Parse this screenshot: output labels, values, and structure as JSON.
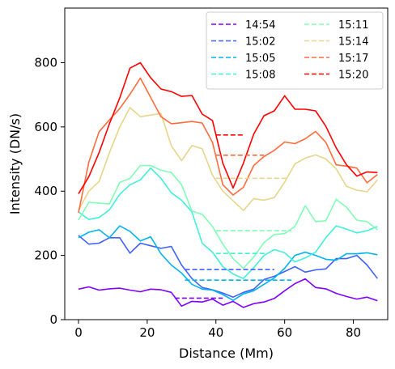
{
  "chart_data": {
    "type": "line",
    "xlabel": "Distance (Mm)",
    "ylabel": "Intensity (DN/s)",
    "xlim": [
      -4,
      90
    ],
    "ylim": [
      0,
      970
    ],
    "xticks": [
      0,
      20,
      40,
      60,
      80
    ],
    "yticks": [
      0,
      200,
      400,
      600,
      800
    ],
    "grid": false,
    "legend": {
      "placement": "top-right",
      "columns": 2
    },
    "x": [
      0,
      3,
      6,
      9,
      12,
      15,
      18,
      21,
      24,
      27,
      30,
      33,
      36,
      39,
      42,
      45,
      48,
      51,
      54,
      57,
      60,
      63,
      66,
      69,
      72,
      75,
      78,
      81,
      84,
      87
    ],
    "series": [
      {
        "name": "14:54",
        "color": "#7f00ff",
        "values": [
          95,
          102,
          92,
          96,
          98,
          92,
          87,
          95,
          93,
          85,
          42,
          57,
          55,
          64,
          45,
          57,
          38,
          50,
          55,
          66,
          90,
          112,
          127,
          100,
          96,
          82,
          72,
          64,
          70,
          59
        ],
        "mean_level": 67,
        "mean_x": [
          28,
          42
        ]
      },
      {
        "name": "15:02",
        "color": "#3f61fa",
        "values": [
          262,
          235,
          238,
          255,
          255,
          207,
          238,
          230,
          222,
          228,
          170,
          128,
          100,
          93,
          83,
          70,
          85,
          95,
          125,
          135,
          150,
          165,
          148,
          155,
          158,
          190,
          190,
          200,
          170,
          128
        ],
        "mean_level": 156,
        "mean_x": [
          31,
          57
        ]
      },
      {
        "name": "15:05",
        "color": "#00b4eb",
        "values": [
          255,
          272,
          280,
          255,
          292,
          275,
          245,
          258,
          205,
          170,
          145,
          110,
          95,
          92,
          78,
          60,
          80,
          90,
          110,
          130,
          160,
          200,
          210,
          200,
          188,
          185,
          205,
          205,
          208,
          202
        ],
        "mean_level": 123,
        "mean_x": [
          31,
          62
        ]
      },
      {
        "name": "15:08",
        "color": "#41f0d9",
        "values": [
          335,
          312,
          318,
          342,
          390,
          420,
          435,
          472,
          440,
          395,
          372,
          335,
          238,
          210,
          165,
          142,
          128,
          162,
          200,
          218,
          208,
          180,
          192,
          210,
          255,
          292,
          282,
          270,
          277,
          290
        ],
        "mean_level": 206,
        "mean_x": [
          40,
          55
        ]
      },
      {
        "name": "15:11",
        "color": "#81feb5",
        "values": [
          310,
          365,
          363,
          360,
          427,
          440,
          480,
          480,
          465,
          458,
          420,
          338,
          328,
          290,
          235,
          190,
          160,
          195,
          240,
          265,
          268,
          290,
          355,
          305,
          308,
          375,
          350,
          310,
          305,
          280
        ],
        "mean_level": 277,
        "mean_x": [
          40,
          62
        ]
      },
      {
        "name": "15:14",
        "color": "#e8d58a",
        "values": [
          340,
          400,
          430,
          520,
          600,
          660,
          632,
          637,
          642,
          542,
          495,
          542,
          532,
          450,
          400,
          370,
          340,
          377,
          372,
          380,
          428,
          485,
          503,
          513,
          500,
          470,
          415,
          403,
          398,
          435
        ],
        "mean_level": 440,
        "mean_x": [
          40,
          61
        ]
      },
      {
        "name": "15:17",
        "color": "#ff6b3d",
        "values": [
          333,
          490,
          585,
          622,
          657,
          702,
          752,
          692,
          632,
          610,
          613,
          617,
          612,
          552,
          420,
          388,
          412,
          480,
          508,
          527,
          553,
          548,
          563,
          586,
          552,
          482,
          478,
          472,
          426,
          452
        ],
        "mean_level": 512,
        "mean_x": [
          40,
          54
        ]
      },
      {
        "name": "15:20",
        "color": "#ff0000",
        "values": [
          392,
          445,
          520,
          610,
          690,
          783,
          800,
          753,
          718,
          710,
          695,
          698,
          640,
          620,
          487,
          410,
          487,
          578,
          635,
          650,
          697,
          655,
          655,
          650,
          602,
          535,
          482,
          447,
          460,
          458
        ],
        "mean_level": 575,
        "mean_x": [
          40,
          48
        ]
      }
    ]
  }
}
